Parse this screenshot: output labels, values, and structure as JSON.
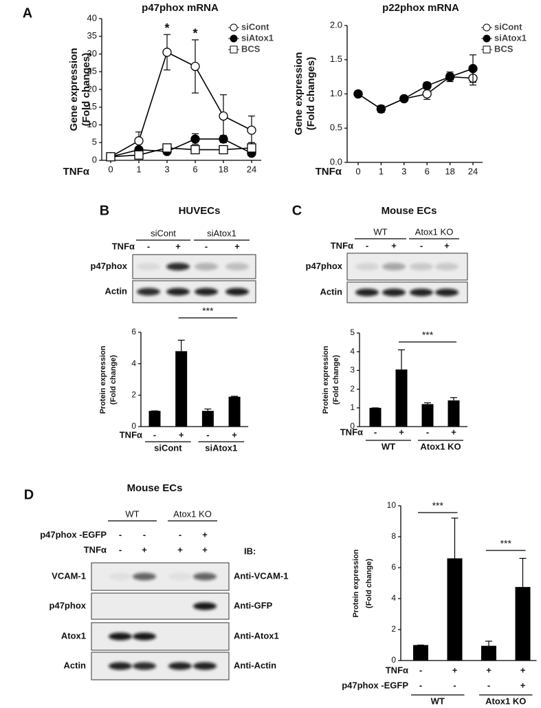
{
  "panel_labels": [
    "A",
    "B",
    "C",
    "D"
  ],
  "chart_data": [
    {
      "type": "line",
      "title": "p47phox mRNA",
      "ylabel": [
        "Gene expression",
        "(Fold changes)"
      ],
      "x_label": "TNFα",
      "categories": [
        "0",
        "1",
        "3",
        "6",
        "18",
        "24"
      ],
      "ylim": [
        0,
        40
      ],
      "yticks": [
        0,
        5,
        10,
        15,
        20,
        25,
        30,
        35,
        40
      ],
      "series": [
        {
          "name": "siCont",
          "color": "#000000",
          "marker": "circle",
          "filled": false,
          "values": [
            1,
            5.5,
            30.5,
            26.5,
            12.5,
            8.5
          ],
          "errors": [
            0,
            2.5,
            5,
            7.5,
            6,
            4
          ]
        },
        {
          "name": "siAtox1",
          "color": "#000000",
          "marker": "circle",
          "filled": true,
          "values": [
            1,
            3,
            2.5,
            6,
            6,
            2
          ],
          "errors": [
            0,
            0.5,
            0.5,
            1.5,
            1,
            0.5
          ]
        },
        {
          "name": "BCS",
          "color": "#000000",
          "marker": "square",
          "filled": false,
          "values": [
            1,
            1.5,
            3.5,
            3,
            3,
            3.5
          ],
          "errors": [
            0,
            0.5,
            0.8,
            0.8,
            0.8,
            1.5
          ]
        }
      ],
      "annotations": [
        {
          "text": "*",
          "x": "3"
        },
        {
          "text": "*",
          "x": "6"
        }
      ]
    },
    {
      "type": "line",
      "title": "p22phox mRNA",
      "ylabel": [
        "Gene expression",
        "(Fold changes)"
      ],
      "x_label": "TNFα",
      "categories": [
        "0",
        "1",
        "3",
        "6",
        "18",
        "24"
      ],
      "ylim": [
        0,
        2
      ],
      "yticks": [
        {
          "value": 0,
          "label": "0.0"
        },
        {
          "value": 0.5,
          "label": "0.5"
        },
        {
          "value": 1,
          "label": "1.0"
        },
        {
          "value": 1.5,
          "label": "1.5"
        },
        {
          "value": 2,
          "label": "2.0"
        }
      ],
      "series": [
        {
          "name": "siCont",
          "color": "#000000",
          "marker": "circle",
          "filled": false,
          "values": [
            1,
            0.78,
            0.93,
            1.0,
            1.25,
            1.23
          ],
          "errors": [
            0.02,
            0.05,
            0.03,
            0.08,
            0.05,
            0.1
          ]
        },
        {
          "name": "siAtox1",
          "color": "#000000",
          "marker": "circle",
          "filled": true,
          "values": [
            1,
            0.78,
            0.93,
            1.12,
            1.25,
            1.37
          ],
          "errors": [
            0.02,
            0.05,
            0.03,
            0.05,
            0.07,
            0.2
          ]
        },
        {
          "name": "BCS",
          "color": "#000000",
          "marker": "square",
          "filled": false,
          "values": [
            null,
            null,
            null,
            null,
            null,
            null
          ],
          "errors": [
            null,
            null,
            null,
            null,
            null,
            null
          ]
        }
      ]
    },
    {
      "type": "bar",
      "ylabel": [
        "Protein expression",
        "(Fold change)"
      ],
      "x_label": "TNFα",
      "color": "#000000",
      "categories": [
        "-",
        "+",
        "-",
        "+"
      ],
      "groups": [
        "siCont",
        "siAtox1"
      ],
      "ylim": [
        0,
        6
      ],
      "yticks": [
        0,
        2,
        4,
        6
      ],
      "values": [
        1,
        4.8,
        1,
        1.9
      ],
      "errors": [
        0,
        0.7,
        0.12,
        0.03
      ],
      "significance": [
        {
          "text": "***",
          "bars": [
            1,
            3
          ]
        }
      ]
    },
    {
      "type": "bar",
      "ylabel": [
        "Protein expression",
        "(Fold change)"
      ],
      "x_label": "TNFα",
      "color": "#000000",
      "categories": [
        "-",
        "+",
        "-",
        "+"
      ],
      "groups": [
        "WT",
        "Atox1 KO"
      ],
      "ylim": [
        0,
        5
      ],
      "yticks": [
        0,
        1,
        2,
        3,
        4,
        5
      ],
      "values": [
        1,
        3.05,
        1.2,
        1.4
      ],
      "errors": [
        0,
        1.05,
        0.07,
        0.15
      ],
      "significance": [
        {
          "text": "***",
          "bars": [
            1,
            3
          ]
        }
      ]
    },
    {
      "type": "bar",
      "ylabel": [
        "Protein expression",
        "(Fold change)"
      ],
      "x_label": "TNFα",
      "color": "#000000",
      "categories": [
        "-",
        "+",
        "+",
        "+"
      ],
      "rows": [
        {
          "label": "p47phox -EGFP",
          "values": [
            "-",
            "-",
            "-",
            "+"
          ]
        }
      ],
      "groups": [
        "WT",
        "Atox1 KO"
      ],
      "ylim": [
        0,
        10
      ],
      "yticks": [
        0,
        2,
        4,
        6,
        8,
        10
      ],
      "values": [
        1,
        6.6,
        0.95,
        4.75
      ],
      "errors": [
        0,
        2.6,
        0.3,
        1.85
      ],
      "significance": [
        {
          "text": "***",
          "bars": [
            0,
            1
          ]
        },
        {
          "text": "***",
          "bars": [
            2,
            3
          ]
        }
      ]
    }
  ],
  "blots": [
    {
      "title": "HUVECs",
      "groups": [
        "siCont",
        "siAtox1"
      ],
      "conditions": [
        {
          "label": "TNFα",
          "values": [
            "-",
            "+",
            "-",
            "+"
          ]
        }
      ],
      "rows": [
        {
          "label": "p47phox"
        },
        {
          "label": "Actin"
        }
      ]
    },
    {
      "title": "Mouse ECs",
      "groups": [
        "WT",
        "Atox1 KO"
      ],
      "conditions": [
        {
          "label": "TNFα",
          "values": [
            "-",
            "+",
            "-",
            "+"
          ]
        }
      ],
      "rows": [
        {
          "label": "p47phox"
        },
        {
          "label": "Actin"
        }
      ]
    },
    {
      "title": "Mouse ECs",
      "groups": [
        "WT",
        "Atox1 KO"
      ],
      "ib_label": "IB:",
      "conditions": [
        {
          "label": "p47phox -EGFP",
          "values": [
            "-",
            "-",
            "-",
            "+"
          ]
        },
        {
          "label": "TNFα",
          "values": [
            "-",
            "+",
            "+",
            "+"
          ]
        }
      ],
      "rows": [
        {
          "label": "VCAM-1",
          "antibody": "Anti-VCAM-1"
        },
        {
          "label": "p47phox",
          "antibody": "Anti-GFP"
        },
        {
          "label": "Atox1",
          "antibody": "Anti-Atox1"
        },
        {
          "label": "Actin",
          "antibody": "Anti-Actin"
        }
      ]
    }
  ]
}
